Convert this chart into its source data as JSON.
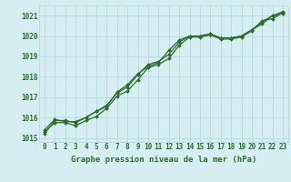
{
  "title": "Graphe pression niveau de la mer (hPa)",
  "bg_color": "#d6eef2",
  "grid_color": "#b0d4da",
  "line_color": "#2d6a2d",
  "x_ticks": [
    0,
    1,
    2,
    3,
    4,
    5,
    6,
    7,
    8,
    9,
    10,
    11,
    12,
    13,
    14,
    15,
    16,
    17,
    18,
    19,
    20,
    21,
    22,
    23
  ],
  "ylim": [
    1014.8,
    1021.5
  ],
  "xlim": [
    -0.5,
    23.5
  ],
  "yticks": [
    1015,
    1016,
    1017,
    1018,
    1019,
    1020,
    1021
  ],
  "series": [
    [
      1015.2,
      1015.85,
      1015.85,
      1015.75,
      1016.0,
      1016.3,
      1016.55,
      1017.25,
      1017.6,
      1018.15,
      1018.5,
      1018.7,
      1019.3,
      1019.8,
      1020.0,
      1020.0,
      1020.1,
      1019.9,
      1019.9,
      1020.0,
      1020.3,
      1020.6,
      1021.0,
      1021.1
    ],
    [
      1015.3,
      1015.75,
      1015.75,
      1015.6,
      1015.85,
      1016.05,
      1016.45,
      1017.05,
      1017.3,
      1017.85,
      1018.45,
      1018.6,
      1018.9,
      1019.55,
      1019.95,
      1019.95,
      1020.05,
      1019.85,
      1019.85,
      1019.95,
      1020.25,
      1020.75,
      1020.85,
      1021.15
    ],
    [
      1015.4,
      1015.9,
      1015.8,
      1015.8,
      1016.0,
      1016.3,
      1016.6,
      1017.2,
      1017.5,
      1018.1,
      1018.6,
      1018.75,
      1019.1,
      1019.7,
      1020.0,
      1020.0,
      1020.1,
      1019.9,
      1019.9,
      1020.0,
      1020.3,
      1020.7,
      1021.0,
      1021.2
    ]
  ],
  "tick_fontsize": 5.5,
  "xlabel_fontsize": 6.5,
  "marker_size": 2.0,
  "line_width": 0.9
}
